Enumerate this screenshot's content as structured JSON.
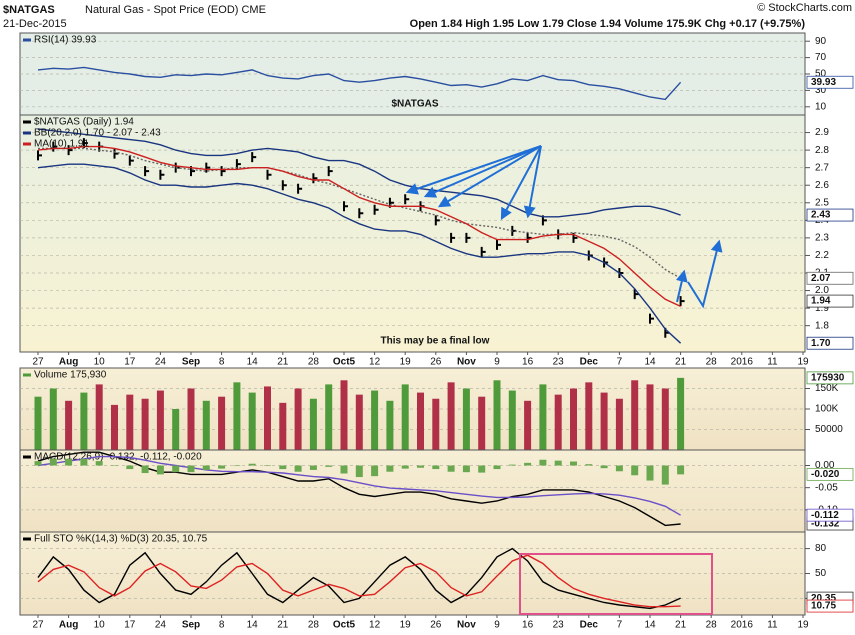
{
  "header": {
    "symbol": "$NATGAS",
    "description": "Natural Gas - Spot Price (EOD) CME",
    "date": "21-Dec-2015",
    "quote": "Open 1.84 High 1.95 Low 1.79 Close 1.94 Volume 175.9K Chg +0.17 (+9.75%)",
    "credit": "© StockCharts.com"
  },
  "annotations": {
    "symbol_big": "$NATGAS",
    "note": "This may be a final low"
  },
  "chart_data": [
    {
      "type": "line",
      "ylim": [
        0,
        100
      ],
      "yticks": [
        10,
        30,
        50,
        70,
        90
      ],
      "grid": true,
      "series": [
        {
          "name": "RSI(14) 39.93",
          "color": "#2a4fa0",
          "end_label": "39.93",
          "values": [
            55,
            57,
            56,
            58,
            55,
            52,
            50,
            47,
            46,
            49,
            48,
            50,
            49,
            52,
            55,
            48,
            45,
            44,
            48,
            50,
            42,
            40,
            42,
            45,
            47,
            44,
            40,
            36,
            37,
            34,
            38,
            44,
            42,
            48,
            43,
            42,
            37,
            35,
            32,
            27,
            22,
            19,
            39.93,
            null,
            null,
            null,
            null,
            null,
            null,
            null,
            null,
            null
          ]
        }
      ]
    },
    {
      "type": "line",
      "ylim": [
        1.65,
        3.0
      ],
      "yticks": [
        1.8,
        1.9,
        {
          "value": 2,
          "label": "2.0"
        },
        2.1,
        2.2,
        2.3,
        2.4,
        2.5,
        2.6,
        2.7,
        2.8,
        2.9
      ],
      "grid": true,
      "categories": [
        "27",
        null,
        "Aug",
        null,
        "10",
        null,
        "17",
        null,
        "24",
        null,
        "Sep",
        null,
        "8",
        null,
        "14",
        null,
        "21",
        null,
        "28",
        null,
        "Oct5",
        null,
        "12",
        null,
        "19",
        null,
        "26",
        null,
        "Nov",
        null,
        "9",
        null,
        "16",
        null,
        "23",
        null,
        "Dec",
        null,
        "7",
        null,
        "14",
        null,
        "21",
        null,
        "28",
        null,
        "2016",
        null,
        "11",
        null,
        "19",
        null
      ],
      "series": [
        {
          "name": "$NATGAS (Daily) 1.94",
          "type": "marker",
          "color": "#000000",
          "end_label": "1.94",
          "values": [
            2.77,
            2.82,
            2.8,
            2.84,
            2.82,
            2.78,
            2.74,
            2.68,
            2.66,
            2.7,
            2.68,
            2.7,
            2.68,
            2.72,
            2.76,
            2.66,
            2.6,
            2.58,
            2.64,
            2.68,
            2.48,
            2.44,
            2.46,
            2.5,
            2.52,
            2.48,
            2.4,
            2.3,
            2.3,
            2.22,
            2.26,
            2.34,
            2.3,
            2.4,
            2.32,
            2.3,
            2.2,
            2.16,
            2.1,
            1.98,
            1.84,
            1.76,
            1.94,
            null,
            null,
            null,
            null,
            null,
            null,
            null,
            null,
            null
          ]
        },
        {
          "name": "BB(20,2.0) 1.70 - 2.07 - 2.43",
          "color": "#1a3580",
          "end_label": "2.43",
          "values": [
            2.92,
            2.91,
            2.9,
            2.89,
            2.88,
            2.87,
            2.86,
            2.85,
            2.83,
            2.8,
            2.78,
            2.77,
            2.77,
            2.78,
            2.8,
            2.81,
            2.8,
            2.79,
            2.76,
            2.74,
            2.74,
            2.72,
            2.68,
            2.63,
            2.6,
            2.58,
            2.57,
            2.56,
            2.55,
            2.54,
            2.52,
            2.48,
            2.44,
            2.42,
            2.42,
            2.43,
            2.44,
            2.46,
            2.47,
            2.48,
            2.48,
            2.46,
            2.43,
            null,
            null,
            null,
            null,
            null,
            null,
            null,
            null,
            null
          ]
        },
        {
          "color": "#666666",
          "dash": true,
          "end_label": "2.07",
          "values": [
            2.81,
            2.81,
            2.81,
            2.81,
            2.8,
            2.79,
            2.77,
            2.74,
            2.72,
            2.7,
            2.69,
            2.68,
            2.69,
            2.7,
            2.7,
            2.7,
            2.68,
            2.66,
            2.63,
            2.61,
            2.58,
            2.55,
            2.52,
            2.49,
            2.47,
            2.45,
            2.43,
            2.4,
            2.38,
            2.37,
            2.36,
            2.34,
            2.33,
            2.32,
            2.32,
            2.33,
            2.32,
            2.31,
            2.29,
            2.25,
            2.19,
            2.12,
            2.07,
            null,
            null,
            null,
            null,
            null,
            null,
            null,
            null,
            null
          ]
        },
        {
          "color": "#1a3580",
          "end_label": "1.70",
          "values": [
            2.7,
            2.71,
            2.72,
            2.72,
            2.71,
            2.7,
            2.67,
            2.63,
            2.6,
            2.6,
            2.59,
            2.59,
            2.6,
            2.61,
            2.6,
            2.58,
            2.55,
            2.52,
            2.5,
            2.47,
            2.42,
            2.38,
            2.35,
            2.34,
            2.34,
            2.32,
            2.28,
            2.24,
            2.21,
            2.19,
            2.19,
            2.2,
            2.21,
            2.21,
            2.22,
            2.22,
            2.2,
            2.16,
            2.1,
            2.01,
            1.9,
            1.78,
            1.7,
            null,
            null,
            null,
            null,
            null,
            null,
            null,
            null,
            null
          ]
        },
        {
          "name": "MA(10) 1.91",
          "color": "#cc2020",
          "values": [
            2.8,
            2.81,
            2.81,
            2.82,
            2.82,
            2.81,
            2.79,
            2.76,
            2.73,
            2.71,
            2.7,
            2.69,
            2.69,
            2.69,
            2.7,
            2.7,
            2.68,
            2.65,
            2.63,
            2.63,
            2.58,
            2.53,
            2.5,
            2.48,
            2.48,
            2.48,
            2.46,
            2.42,
            2.38,
            2.33,
            2.29,
            2.29,
            2.29,
            2.31,
            2.32,
            2.32,
            2.28,
            2.24,
            2.18,
            2.1,
            2.02,
            1.95,
            1.91,
            null,
            null,
            null,
            null,
            null,
            null,
            null,
            null,
            null
          ]
        }
      ]
    },
    {
      "type": "bar",
      "ylim": [
        0,
        200000
      ],
      "yticks": [
        50000,
        {
          "value": 100000,
          "label": "100K"
        },
        {
          "value": 150000,
          "label": "150K"
        }
      ],
      "grid": true,
      "up_color": "#4f9a3a",
      "down_color": "#b03048",
      "series": [
        {
          "name": "Volume 175,930",
          "color": "#4f9a3a",
          "end_label": "175930",
          "values": [
            130000,
            150000,
            120000,
            140000,
            160000,
            110000,
            135000,
            125000,
            145000,
            100000,
            150000,
            120000,
            130000,
            165000,
            140000,
            155000,
            115000,
            150000,
            125000,
            160000,
            170000,
            135000,
            145000,
            120000,
            160000,
            140000,
            125000,
            165000,
            150000,
            130000,
            170000,
            145000,
            120000,
            160000,
            135000,
            150000,
            165000,
            140000,
            125000,
            170000,
            160000,
            150000,
            175930,
            null,
            null,
            null,
            null,
            null,
            null,
            null,
            null,
            null
          ]
        }
      ]
    },
    {
      "type": "line",
      "ylim": [
        -0.15,
        0.035
      ],
      "yticks": [
        {
          "value": 0,
          "label": "0.00"
        },
        {
          "value": -0.05,
          "label": "-0.05"
        },
        {
          "value": -0.1,
          "label": "-0.10"
        }
      ],
      "grid": true,
      "series": [
        {
          "name": "MACD(12,26,9) -0.132, -0.112, -0.020",
          "color": "#000000",
          "end_label": "-0.132",
          "values": [
            0.01,
            0.02,
            0.025,
            0.03,
            0.03,
            0.02,
            0.01,
            -0.005,
            -0.015,
            -0.015,
            -0.02,
            -0.02,
            -0.02,
            -0.015,
            -0.01,
            -0.015,
            -0.025,
            -0.035,
            -0.035,
            -0.03,
            -0.05,
            -0.065,
            -0.07,
            -0.065,
            -0.06,
            -0.06,
            -0.065,
            -0.075,
            -0.08,
            -0.085,
            -0.08,
            -0.07,
            -0.065,
            -0.055,
            -0.055,
            -0.055,
            -0.06,
            -0.07,
            -0.08,
            -0.095,
            -0.115,
            -0.135,
            -0.132,
            null,
            null,
            null,
            null,
            null,
            null,
            null,
            null,
            null
          ]
        },
        {
          "color": "#6a4fc8",
          "end_label": "-0.112",
          "values": [
            0.0,
            0.005,
            0.01,
            0.015,
            0.02,
            0.02,
            0.018,
            0.012,
            0.005,
            0,
            -0.005,
            -0.01,
            -0.013,
            -0.014,
            -0.014,
            -0.015,
            -0.017,
            -0.021,
            -0.025,
            -0.027,
            -0.032,
            -0.039,
            -0.046,
            -0.051,
            -0.053,
            -0.055,
            -0.057,
            -0.061,
            -0.065,
            -0.069,
            -0.072,
            -0.072,
            -0.071,
            -0.068,
            -0.066,
            -0.064,
            -0.063,
            -0.064,
            -0.067,
            -0.073,
            -0.081,
            -0.092,
            -0.112,
            null,
            null,
            null,
            null,
            null,
            null,
            null,
            null,
            null
          ]
        },
        {
          "type": "bar",
          "color": "#6aa84f",
          "end_label": "-0.020",
          "values": [
            0.01,
            0.015,
            0.015,
            0.015,
            0.01,
            0,
            -0.008,
            -0.017,
            -0.02,
            -0.015,
            -0.015,
            -0.01,
            -0.007,
            -0.001,
            0.004,
            0,
            -0.008,
            -0.014,
            -0.01,
            -0.003,
            -0.018,
            -0.026,
            -0.024,
            -0.014,
            -0.007,
            -0.005,
            -0.008,
            -0.014,
            -0.015,
            -0.016,
            -0.008,
            0.002,
            0.006,
            0.013,
            0.011,
            0.009,
            0.003,
            -0.006,
            -0.013,
            -0.022,
            -0.034,
            -0.043,
            -0.02,
            null,
            null,
            null,
            null,
            null,
            null,
            null,
            null,
            null
          ]
        }
      ]
    },
    {
      "type": "line",
      "ylim": [
        0,
        100
      ],
      "yticks": [
        20,
        50,
        80
      ],
      "grid": true,
      "categories": [
        "27",
        null,
        "Aug",
        null,
        "10",
        null,
        "17",
        null,
        "24",
        null,
        "Sep",
        null,
        "8",
        null,
        "14",
        null,
        "21",
        null,
        "28",
        null,
        "Oct5",
        null,
        "12",
        null,
        "19",
        null,
        "26",
        null,
        "Nov",
        null,
        "9",
        null,
        "16",
        null,
        "23",
        null,
        "Dec",
        null,
        "7",
        null,
        "14",
        null,
        "21",
        null,
        "28",
        null,
        "2016",
        null,
        "11",
        null,
        "19",
        null
      ],
      "series": [
        {
          "name": "Full STO %K(14,3) %D(3) 20.35, 10.75",
          "color": "#000000",
          "end_label": "20.35",
          "values": [
            45,
            70,
            55,
            30,
            15,
            25,
            60,
            75,
            50,
            30,
            25,
            40,
            60,
            75,
            50,
            25,
            15,
            30,
            45,
            35,
            15,
            20,
            40,
            60,
            70,
            55,
            30,
            15,
            25,
            45,
            70,
            80,
            65,
            40,
            30,
            25,
            20,
            15,
            12,
            10,
            8,
            12,
            20.35,
            null,
            null,
            null,
            null,
            null,
            null,
            null,
            null,
            null
          ]
        },
        {
          "color": "#dd2222",
          "end_label": "10.75",
          "values": [
            40,
            55,
            60,
            52,
            33,
            23,
            33,
            53,
            62,
            52,
            35,
            32,
            42,
            58,
            62,
            50,
            30,
            23,
            30,
            37,
            32,
            23,
            25,
            40,
            57,
            62,
            52,
            33,
            23,
            28,
            47,
            65,
            72,
            62,
            45,
            32,
            25,
            20,
            16,
            12,
            10,
            10,
            10.75,
            null,
            null,
            null,
            null,
            null,
            null,
            null,
            null,
            null
          ]
        }
      ]
    }
  ]
}
